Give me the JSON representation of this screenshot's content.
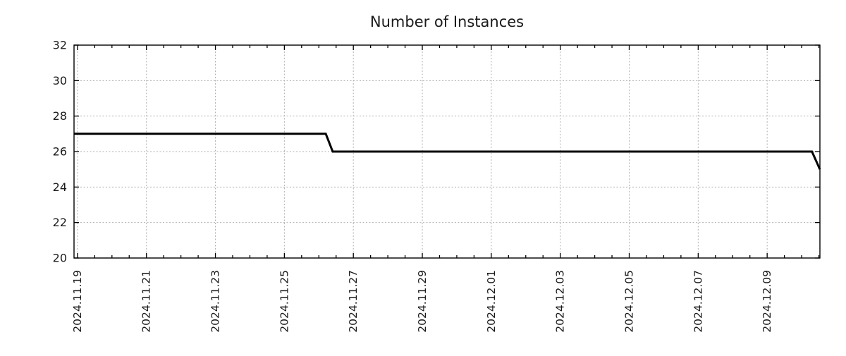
{
  "chart_data": {
    "type": "line",
    "title": "Number of Instances",
    "line_color": "#000000",
    "grid_color": "#b0b0b0",
    "x_axis": {
      "unit": "days since 2024-11-19",
      "tick_labels": [
        "2024.11.19",
        "2024.11.21",
        "2024.11.23",
        "2024.11.25",
        "2024.11.27",
        "2024.11.29",
        "2024.12.01",
        "2024.12.03",
        "2024.12.05",
        "2024.12.07",
        "2024.12.09"
      ],
      "tick_positions_days": [
        0,
        2,
        4,
        6,
        8,
        10,
        12,
        14,
        16,
        18,
        20
      ],
      "minor_tick_interval_days": 0.5,
      "range_days": [
        -0.1,
        21.53
      ]
    },
    "y_axis": {
      "ticks": [
        20,
        22,
        24,
        26,
        28,
        30,
        32
      ],
      "range": [
        20,
        32
      ]
    },
    "grid": true,
    "series": [
      {
        "name": "instances",
        "color": "#000000",
        "width": 3,
        "points": [
          [
            -0.1,
            27
          ],
          [
            7.2,
            27
          ],
          [
            7.4,
            26
          ],
          [
            21.3,
            26
          ],
          [
            21.53,
            25
          ]
        ],
        "description": "27 instances from 2024-11-19 until ~2024-11-26, then 26 until ~2024-12-10, dropping to 25 at the right edge"
      }
    ]
  }
}
